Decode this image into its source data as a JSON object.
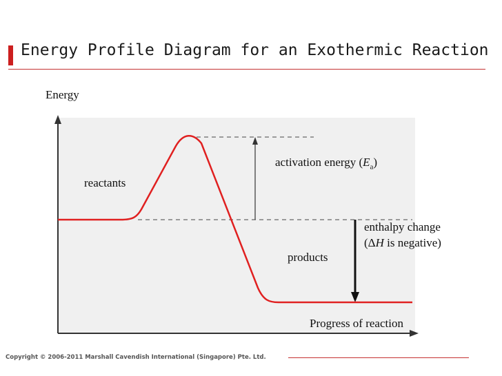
{
  "slide": {
    "title": "Energy Profile Diagram for an Exothermic Reaction",
    "copyright": "Copyright © 2006-2011 Marshall Cavendish International (Singapore) Pte. Ltd."
  },
  "diagram": {
    "y_axis_label": "Energy",
    "x_axis_label": "Progress of reaction",
    "reactants_label": "reactants",
    "products_label": "products",
    "activation_energy": {
      "text": "activation energy (",
      "symbol": "E",
      "subscript": "a",
      "close": ")"
    },
    "enthalpy_change": {
      "line1": "enthalpy change",
      "line2_open": "(Δ",
      "symbol": "H",
      "line2_rest": " is negative)"
    }
  },
  "colors": {
    "curve": "#e02020",
    "axes": "#333333",
    "dashed": "#666666",
    "accent": "#cc1f1f"
  }
}
